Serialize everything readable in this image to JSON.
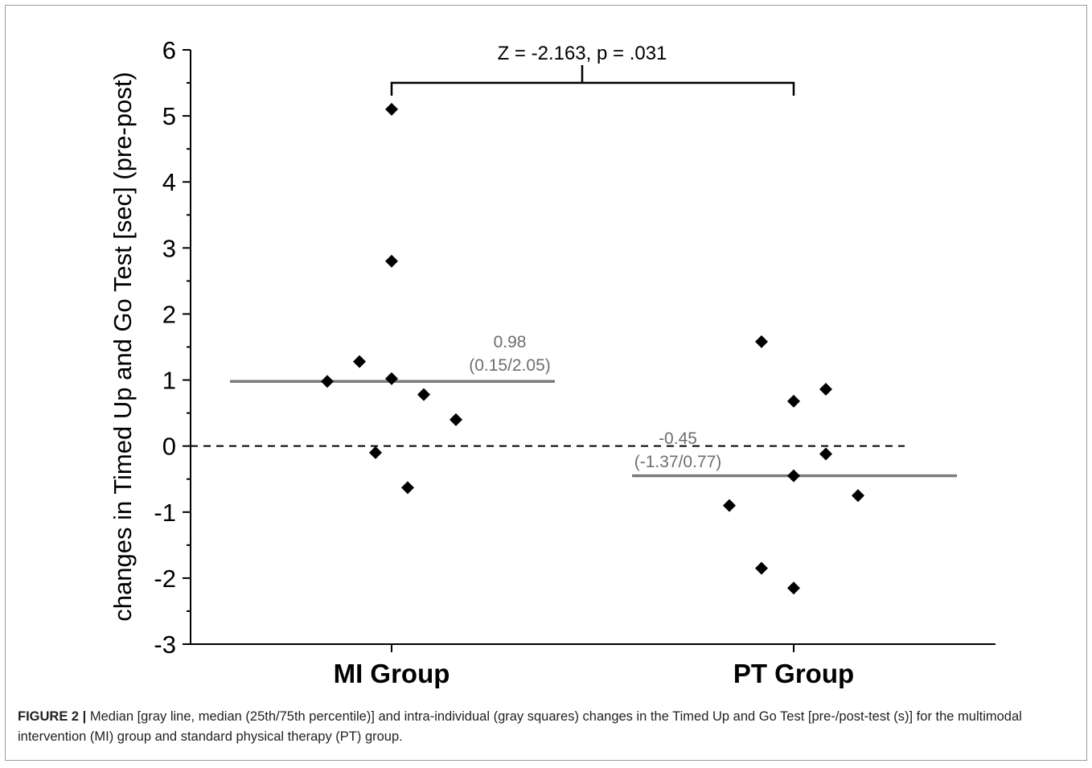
{
  "chart_data": {
    "type": "scatter",
    "ylabel": "changes in Timed Up and Go Test [sec] (pre-post)",
    "ylim": [
      -3,
      6
    ],
    "yticks": [
      -3,
      -2,
      -1,
      0,
      1,
      2,
      3,
      4,
      5,
      6
    ],
    "categories": [
      "MI Group",
      "PT Group"
    ],
    "series": [
      {
        "category": "MI Group",
        "points": [
          {
            "offset": -2,
            "y": 0.98
          },
          {
            "offset": -1,
            "y": 1.28
          },
          {
            "offset": 0,
            "y": 5.1
          },
          {
            "offset": 0,
            "y": 2.8
          },
          {
            "offset": 0,
            "y": 1.02
          },
          {
            "offset": -0.5,
            "y": -0.1
          },
          {
            "offset": 1,
            "y": 0.78
          },
          {
            "offset": 0.5,
            "y": -0.63
          },
          {
            "offset": 2,
            "y": 0.4
          }
        ],
        "median": 0.98,
        "median_label": "0.98",
        "iqr_label": "(0.15/2.05)"
      },
      {
        "category": "PT Group",
        "points": [
          {
            "offset": -1,
            "y": 1.58
          },
          {
            "offset": 0,
            "y": 0.68
          },
          {
            "offset": 1,
            "y": 0.86
          },
          {
            "offset": 1,
            "y": -0.12
          },
          {
            "offset": 0,
            "y": -0.45
          },
          {
            "offset": 2,
            "y": -0.75
          },
          {
            "offset": -2,
            "y": -0.9
          },
          {
            "offset": -1,
            "y": -1.85
          },
          {
            "offset": 0,
            "y": -2.15
          }
        ],
        "median": -0.45,
        "median_label": "-0.45",
        "iqr_label": "(-1.37/0.77)"
      }
    ],
    "reference_line": 0,
    "annotation": "Z = -2.163, p = .031",
    "colors": {
      "points": "#000000",
      "median": "#7a7a7a",
      "axis": "#000000"
    }
  },
  "caption": {
    "label": "FIGURE 2 |",
    "text": " Median [gray line, median (25th/75th percentile)] and intra-individual (gray squares) changes in the Timed Up and Go Test [pre-/post-test (s)] for the multimodal intervention (MI) group and standard physical therapy (PT) group."
  }
}
